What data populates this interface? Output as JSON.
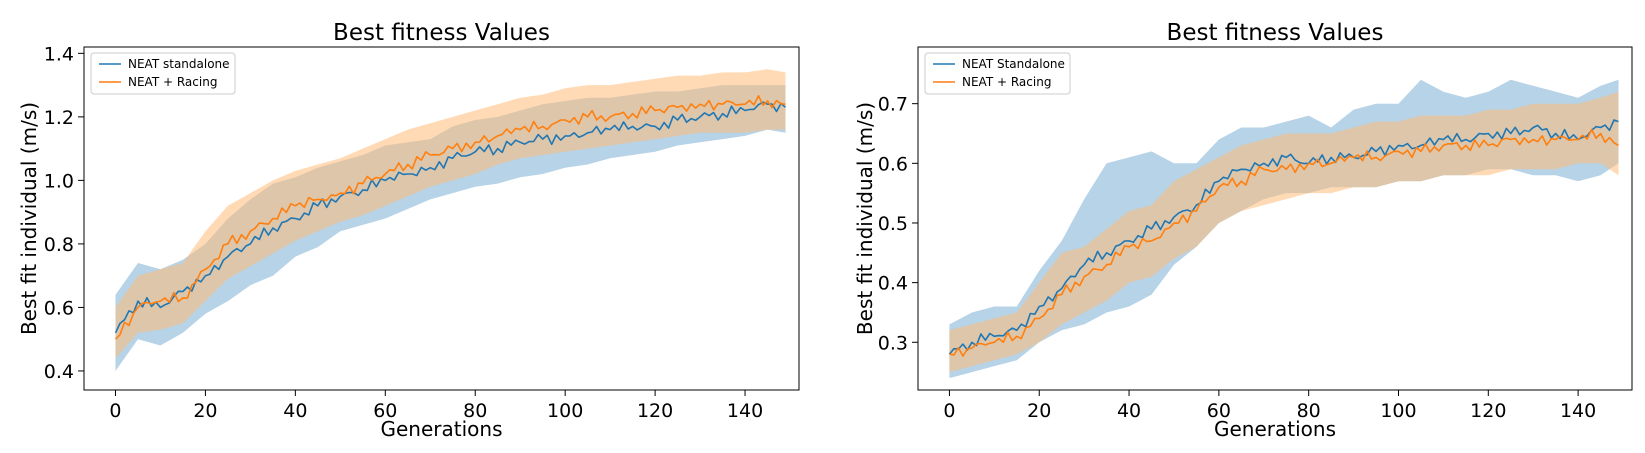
{
  "chart_data": [
    {
      "type": "line",
      "title": "Best fitness Values",
      "xlabel": "Generations",
      "ylabel": "Best fit individual (m/s)",
      "xlim": [
        -7,
        152
      ],
      "ylim": [
        0.34,
        1.42
      ],
      "xticks": [
        0,
        20,
        40,
        60,
        80,
        100,
        120,
        140
      ],
      "yticks": [
        0.4,
        0.6,
        0.8,
        1.0,
        1.2,
        1.4
      ],
      "ytick_labels": [
        "0.4",
        "0.6",
        "0.8",
        "1.0",
        "1.2",
        "1.4"
      ],
      "grid": false,
      "legend_position": "upper-left",
      "series": [
        {
          "name": "NEAT standalone",
          "color": "#1f77b4",
          "band_color": "#1f77b4",
          "x": [
            0,
            5,
            10,
            15,
            20,
            25,
            30,
            35,
            40,
            45,
            50,
            55,
            60,
            65,
            70,
            75,
            80,
            85,
            90,
            95,
            100,
            105,
            110,
            115,
            120,
            125,
            130,
            135,
            140,
            145,
            149
          ],
          "mean": [
            0.52,
            0.62,
            0.6,
            0.65,
            0.7,
            0.76,
            0.8,
            0.85,
            0.88,
            0.92,
            0.95,
            0.97,
            1.0,
            1.02,
            1.04,
            1.07,
            1.09,
            1.1,
            1.12,
            1.13,
            1.14,
            1.15,
            1.16,
            1.17,
            1.17,
            1.19,
            1.2,
            1.21,
            1.22,
            1.24,
            1.23
          ],
          "upper": [
            0.64,
            0.74,
            0.72,
            0.75,
            0.8,
            0.88,
            0.94,
            0.99,
            1.01,
            1.04,
            1.06,
            1.08,
            1.11,
            1.12,
            1.13,
            1.17,
            1.19,
            1.2,
            1.22,
            1.24,
            1.25,
            1.26,
            1.26,
            1.27,
            1.28,
            1.28,
            1.29,
            1.3,
            1.3,
            1.3,
            1.3
          ],
          "lower": [
            0.4,
            0.5,
            0.48,
            0.52,
            0.58,
            0.62,
            0.67,
            0.7,
            0.76,
            0.79,
            0.84,
            0.86,
            0.88,
            0.91,
            0.94,
            0.96,
            0.98,
            0.99,
            1.01,
            1.02,
            1.04,
            1.05,
            1.07,
            1.08,
            1.09,
            1.11,
            1.12,
            1.13,
            1.14,
            1.16,
            1.15
          ]
        },
        {
          "name": "NEAT + Racing",
          "color": "#ff7f0e",
          "band_color": "#ffbb78",
          "x": [
            0,
            5,
            10,
            15,
            20,
            25,
            30,
            35,
            40,
            45,
            50,
            55,
            60,
            65,
            70,
            75,
            80,
            85,
            90,
            95,
            100,
            105,
            110,
            115,
            120,
            125,
            130,
            135,
            140,
            145,
            149
          ],
          "mean": [
            0.5,
            0.6,
            0.62,
            0.63,
            0.72,
            0.8,
            0.84,
            0.88,
            0.92,
            0.94,
            0.96,
            0.99,
            1.02,
            1.05,
            1.08,
            1.1,
            1.12,
            1.14,
            1.16,
            1.17,
            1.19,
            1.2,
            1.2,
            1.21,
            1.22,
            1.23,
            1.24,
            1.24,
            1.24,
            1.25,
            1.24
          ],
          "upper": [
            0.6,
            0.7,
            0.72,
            0.74,
            0.84,
            0.92,
            0.96,
            1.0,
            1.03,
            1.05,
            1.07,
            1.1,
            1.13,
            1.16,
            1.18,
            1.2,
            1.22,
            1.24,
            1.26,
            1.27,
            1.29,
            1.3,
            1.3,
            1.31,
            1.32,
            1.33,
            1.33,
            1.34,
            1.34,
            1.35,
            1.34
          ],
          "lower": [
            0.44,
            0.52,
            0.53,
            0.55,
            0.62,
            0.69,
            0.73,
            0.77,
            0.81,
            0.84,
            0.87,
            0.89,
            0.92,
            0.95,
            0.98,
            1.0,
            1.02,
            1.05,
            1.07,
            1.08,
            1.09,
            1.1,
            1.11,
            1.12,
            1.13,
            1.14,
            1.15,
            1.15,
            1.15,
            1.16,
            1.16
          ]
        }
      ]
    },
    {
      "type": "line",
      "title": "Best fitness Values",
      "xlabel": "Generations",
      "ylabel": "Best fit individual (m/s)",
      "xlim": [
        -7,
        152
      ],
      "ylim": [
        0.22,
        0.795
      ],
      "xticks": [
        0,
        20,
        40,
        60,
        80,
        100,
        120,
        140
      ],
      "yticks": [
        0.3,
        0.4,
        0.5,
        0.6,
        0.7
      ],
      "ytick_labels": [
        "0.3",
        "0.4",
        "0.5",
        "0.6",
        "0.7"
      ],
      "grid": false,
      "legend_position": "upper-left",
      "series": [
        {
          "name": "NEAT Standalone",
          "color": "#1f77b4",
          "band_color": "#1f77b4",
          "x": [
            0,
            5,
            10,
            15,
            20,
            25,
            30,
            35,
            40,
            45,
            50,
            55,
            60,
            65,
            70,
            75,
            80,
            85,
            90,
            95,
            100,
            105,
            110,
            115,
            120,
            125,
            130,
            135,
            140,
            145,
            149
          ],
          "mean": [
            0.28,
            0.3,
            0.31,
            0.32,
            0.36,
            0.39,
            0.43,
            0.45,
            0.47,
            0.49,
            0.51,
            0.53,
            0.57,
            0.59,
            0.6,
            0.61,
            0.6,
            0.61,
            0.61,
            0.62,
            0.63,
            0.63,
            0.64,
            0.64,
            0.65,
            0.65,
            0.66,
            0.65,
            0.64,
            0.66,
            0.67
          ],
          "upper": [
            0.33,
            0.35,
            0.36,
            0.36,
            0.42,
            0.47,
            0.54,
            0.6,
            0.61,
            0.62,
            0.6,
            0.6,
            0.64,
            0.66,
            0.66,
            0.67,
            0.68,
            0.66,
            0.69,
            0.7,
            0.7,
            0.74,
            0.72,
            0.71,
            0.72,
            0.74,
            0.73,
            0.72,
            0.71,
            0.73,
            0.74
          ],
          "lower": [
            0.24,
            0.25,
            0.26,
            0.27,
            0.3,
            0.32,
            0.33,
            0.35,
            0.36,
            0.38,
            0.43,
            0.46,
            0.5,
            0.52,
            0.54,
            0.55,
            0.55,
            0.56,
            0.56,
            0.56,
            0.57,
            0.57,
            0.58,
            0.58,
            0.59,
            0.59,
            0.58,
            0.58,
            0.57,
            0.58,
            0.6
          ]
        },
        {
          "name": "NEAT + Racing",
          "color": "#ff7f0e",
          "band_color": "#ffbb78",
          "x": [
            0,
            5,
            10,
            15,
            20,
            25,
            30,
            35,
            40,
            45,
            50,
            55,
            60,
            65,
            70,
            75,
            80,
            85,
            90,
            95,
            100,
            105,
            110,
            115,
            120,
            125,
            130,
            135,
            140,
            145,
            149
          ],
          "mean": [
            0.28,
            0.29,
            0.3,
            0.31,
            0.34,
            0.38,
            0.41,
            0.43,
            0.46,
            0.47,
            0.5,
            0.52,
            0.56,
            0.57,
            0.59,
            0.59,
            0.6,
            0.6,
            0.61,
            0.61,
            0.62,
            0.62,
            0.63,
            0.63,
            0.63,
            0.64,
            0.64,
            0.64,
            0.64,
            0.65,
            0.63
          ],
          "upper": [
            0.32,
            0.33,
            0.34,
            0.35,
            0.4,
            0.45,
            0.46,
            0.49,
            0.52,
            0.53,
            0.57,
            0.59,
            0.61,
            0.63,
            0.64,
            0.65,
            0.65,
            0.65,
            0.66,
            0.67,
            0.67,
            0.68,
            0.68,
            0.68,
            0.69,
            0.69,
            0.7,
            0.7,
            0.7,
            0.71,
            0.72
          ],
          "lower": [
            0.25,
            0.26,
            0.27,
            0.28,
            0.3,
            0.33,
            0.35,
            0.37,
            0.4,
            0.41,
            0.44,
            0.46,
            0.5,
            0.52,
            0.53,
            0.54,
            0.55,
            0.55,
            0.56,
            0.56,
            0.57,
            0.57,
            0.58,
            0.58,
            0.58,
            0.59,
            0.59,
            0.59,
            0.6,
            0.6,
            0.58
          ]
        }
      ]
    }
  ]
}
